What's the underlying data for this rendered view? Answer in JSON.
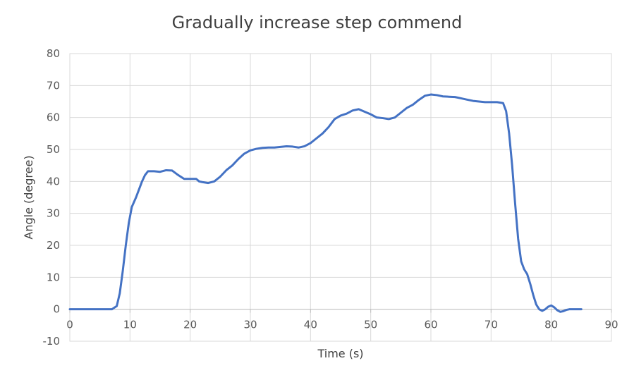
{
  "chart_data": {
    "type": "line",
    "title": "Gradually increase step commend",
    "xlabel": "Time (s)",
    "ylabel": "Angle (degree)",
    "xlim": [
      0,
      90
    ],
    "ylim": [
      -10,
      80
    ],
    "xticks": [
      0,
      10,
      20,
      30,
      40,
      50,
      60,
      70,
      80,
      90
    ],
    "yticks": [
      -10,
      0,
      10,
      20,
      30,
      40,
      50,
      60,
      70,
      80
    ],
    "grid": true,
    "legend": "none",
    "series": [
      {
        "color": "#4472c4",
        "x": [
          0,
          5,
          7,
          7.8,
          8.3,
          8.8,
          9.3,
          9.8,
          10.3,
          11,
          11.5,
          12,
          12.5,
          13,
          14,
          15,
          16,
          17,
          18,
          19,
          20,
          21,
          21.5,
          22,
          23,
          24,
          25,
          26,
          27,
          28,
          29,
          30,
          31,
          32,
          33,
          34,
          35,
          36,
          37,
          38,
          39,
          40,
          41,
          42,
          43,
          44,
          45,
          46,
          47,
          48,
          49,
          50,
          51,
          52,
          53,
          54,
          55,
          56,
          57,
          58,
          59,
          60,
          61,
          62,
          63,
          64,
          65,
          66,
          67,
          68,
          69,
          70,
          71,
          72,
          72.5,
          73,
          73.5,
          74,
          74.5,
          75,
          75.5,
          76,
          76.5,
          77,
          77.5,
          78,
          78.5,
          79,
          79.5,
          80,
          80.5,
          81,
          81.5,
          82,
          82.5,
          83,
          83.5,
          84,
          85
        ],
        "y": [
          0,
          0,
          0,
          1,
          5,
          12,
          20,
          27,
          32,
          35,
          37.5,
          40,
          42,
          43.2,
          43.2,
          43,
          43.5,
          43.4,
          42,
          40.8,
          40.8,
          40.8,
          40,
          39.8,
          39.5,
          40,
          41.5,
          43.5,
          45,
          47,
          48.7,
          49.7,
          50.2,
          50.5,
          50.6,
          50.6,
          50.8,
          51,
          50.9,
          50.6,
          51,
          52,
          53.5,
          55,
          57,
          59.5,
          60.6,
          61.2,
          62.2,
          62.6,
          61.8,
          61,
          60,
          59.8,
          59.5,
          60,
          61.5,
          63,
          64,
          65.5,
          66.8,
          67.2,
          67,
          66.6,
          66.5,
          66.4,
          66,
          65.6,
          65.2,
          65,
          64.8,
          64.8,
          64.8,
          64.5,
          62,
          55,
          45,
          33,
          22,
          15,
          12.5,
          11,
          8,
          4.5,
          1.5,
          0,
          -0.5,
          0,
          0.8,
          1.2,
          0.6,
          -0.3,
          -0.8,
          -0.6,
          -0.2,
          0,
          0,
          0,
          0
        ]
      }
    ]
  }
}
